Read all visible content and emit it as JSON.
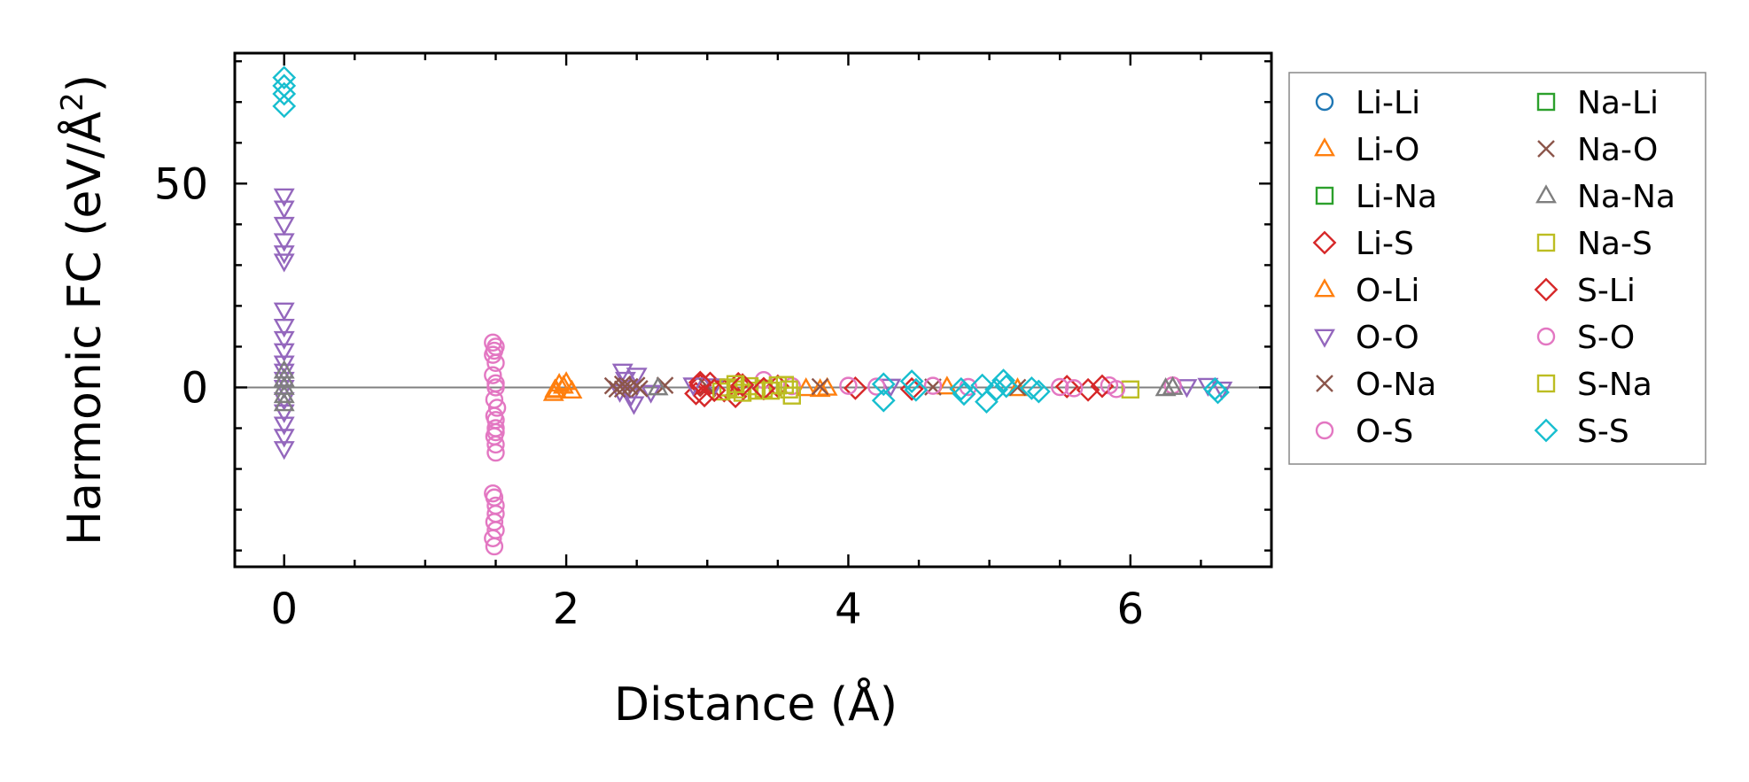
{
  "chart_data": {
    "type": "scatter",
    "xlabel": "Distance (Å)",
    "ylabel_main": "Harmonic FC (eV/Å",
    "ylabel_sup": "2",
    "ylabel_end": ")",
    "xlim": [
      -0.35,
      7.0
    ],
    "ylim": [
      -44,
      82
    ],
    "xticks": [
      0,
      2,
      4,
      6
    ],
    "yticks": [
      0,
      50
    ],
    "zero_line": true,
    "grid": false,
    "legend_position": "outside-right",
    "series": [
      {
        "name": "Li-Li",
        "marker": "circle",
        "color": "#1f77b4",
        "points": []
      },
      {
        "name": "Li-O",
        "marker": "triangle-up",
        "color": "#ff7f0e",
        "points": [
          [
            1.91,
            -1.5
          ],
          [
            1.92,
            -0.6
          ],
          [
            1.95,
            0.8
          ],
          [
            1.98,
            0.3
          ],
          [
            2.04,
            -0.9
          ],
          [
            3.8,
            -0.5
          ],
          [
            3.85,
            -0.2
          ],
          [
            5.2,
            -0.3
          ]
        ]
      },
      {
        "name": "Li-Na",
        "marker": "square",
        "color": "#2ca02c",
        "points": []
      },
      {
        "name": "Li-S",
        "marker": "diamond",
        "color": "#d62728",
        "points": [
          [
            2.92,
            -1.5
          ],
          [
            2.95,
            0.5
          ],
          [
            2.98,
            -2
          ],
          [
            3.02,
            1
          ],
          [
            3.12,
            -0.8
          ],
          [
            3.2,
            -2.2
          ],
          [
            3.22,
            0.9
          ],
          [
            3.5,
            0.3
          ],
          [
            4.05,
            -0.2
          ],
          [
            5.55,
            0.2
          ],
          [
            5.7,
            -0.6
          ]
        ]
      },
      {
        "name": "O-Li",
        "marker": "triangle-up",
        "color": "#ff7f0e",
        "points": [
          [
            1.93,
            -0.8
          ],
          [
            2.0,
            1.2
          ],
          [
            3.7,
            -0.3
          ],
          [
            4.7,
            0.1
          ]
        ]
      },
      {
        "name": "O-O",
        "marker": "triangle-down",
        "color": "#9467bd",
        "points": [
          [
            0,
            47
          ],
          [
            0,
            44
          ],
          [
            0,
            40
          ],
          [
            0,
            36
          ],
          [
            0,
            33
          ],
          [
            0,
            31
          ],
          [
            0,
            19
          ],
          [
            0,
            15
          ],
          [
            0,
            12
          ],
          [
            0,
            9
          ],
          [
            0,
            6
          ],
          [
            0,
            4
          ],
          [
            0,
            2
          ],
          [
            0,
            0
          ],
          [
            0,
            -3
          ],
          [
            0,
            -6
          ],
          [
            0,
            -9
          ],
          [
            0,
            -12
          ],
          [
            0,
            -15
          ],
          [
            2.4,
            4
          ],
          [
            2.42,
            2
          ],
          [
            2.44,
            0
          ],
          [
            2.46,
            -2
          ],
          [
            2.48,
            -4
          ],
          [
            2.5,
            3
          ],
          [
            2.38,
            -1
          ],
          [
            2.6,
            -1.2
          ],
          [
            2.9,
            0.6
          ],
          [
            3.05,
            0.4
          ],
          [
            4.3,
            0.3
          ],
          [
            6.4,
            0.2
          ],
          [
            6.55,
            0.5
          ],
          [
            6.65,
            -0.4
          ]
        ]
      },
      {
        "name": "O-Na",
        "marker": "x",
        "color": "#8c564b",
        "points": [
          [
            2.33,
            0.4
          ],
          [
            2.36,
            -0.4
          ],
          [
            2.4,
            0.8
          ],
          [
            2.45,
            0.2
          ],
          [
            2.52,
            -0.3
          ],
          [
            2.7,
            0.5
          ],
          [
            3.8,
            0.2
          ],
          [
            4.6,
            0.1
          ],
          [
            5.2,
            0
          ]
        ]
      },
      {
        "name": "O-S",
        "marker": "circle",
        "color": "#e377c2",
        "points": [
          [
            1.48,
            11
          ],
          [
            1.49,
            9
          ],
          [
            1.5,
            6
          ],
          [
            1.48,
            3
          ],
          [
            1.5,
            0
          ],
          [
            1.49,
            -3
          ],
          [
            1.51,
            -5
          ],
          [
            1.5,
            -8
          ],
          [
            1.5,
            -10
          ],
          [
            1.49,
            -12
          ],
          [
            1.5,
            -14
          ],
          [
            1.48,
            -26
          ],
          [
            1.5,
            -29
          ],
          [
            1.49,
            -33
          ],
          [
            1.5,
            -35
          ],
          [
            1.49,
            -39
          ],
          [
            3.4,
            1.8
          ],
          [
            3.6,
            0.3
          ],
          [
            4.0,
            0.4
          ],
          [
            4.2,
            0.2
          ],
          [
            4.6,
            0.4
          ],
          [
            4.85,
            0.1
          ],
          [
            5.5,
            0.1
          ],
          [
            5.85,
            0.5
          ],
          [
            6.3,
            0.5
          ]
        ]
      },
      {
        "name": "Na-Li",
        "marker": "square",
        "color": "#2ca02c",
        "points": []
      },
      {
        "name": "Na-O",
        "marker": "x",
        "color": "#8c564b",
        "points": [
          [
            2.4,
            -0.4
          ],
          [
            2.5,
            0.5
          ],
          [
            3.0,
            0.2
          ]
        ]
      },
      {
        "name": "Na-Na",
        "marker": "triangle-up",
        "color": "#7f7f7f",
        "points": [
          [
            0,
            4
          ],
          [
            0,
            2
          ],
          [
            0,
            0
          ],
          [
            0,
            -2
          ],
          [
            0,
            -4
          ],
          [
            2.65,
            -0.1
          ],
          [
            6.25,
            -0.3
          ],
          [
            6.3,
            0
          ]
        ]
      },
      {
        "name": "Na-S",
        "marker": "square",
        "color": "#bcbd22",
        "points": [
          [
            3.1,
            -1
          ],
          [
            3.15,
            0
          ],
          [
            3.2,
            -0.5
          ],
          [
            3.25,
            -1.3
          ],
          [
            3.3,
            0.3
          ],
          [
            3.35,
            -0.8
          ],
          [
            3.4,
            -0.3
          ],
          [
            3.5,
            0.5
          ],
          [
            3.58,
            -0.5
          ],
          [
            3.6,
            -2
          ],
          [
            6.0,
            -0.5
          ]
        ]
      },
      {
        "name": "S-Li",
        "marker": "diamond",
        "color": "#d62728",
        "points": [
          [
            2.95,
            1.2
          ],
          [
            3.05,
            -0.7
          ],
          [
            3.25,
            0.6
          ],
          [
            3.4,
            -0.3
          ],
          [
            4.45,
            -0.4
          ],
          [
            5.8,
            0.3
          ]
        ]
      },
      {
        "name": "S-O",
        "marker": "circle",
        "color": "#e377c2",
        "points": [
          [
            1.5,
            10
          ],
          [
            1.48,
            8
          ],
          [
            1.5,
            1
          ],
          [
            1.49,
            -7
          ],
          [
            1.5,
            -11
          ],
          [
            1.5,
            -16
          ],
          [
            1.49,
            -27
          ],
          [
            1.5,
            -31
          ],
          [
            1.48,
            -37
          ],
          [
            5.6,
            -0.2
          ],
          [
            5.9,
            -0.4
          ]
        ]
      },
      {
        "name": "S-Na",
        "marker": "square",
        "color": "#bcbd22",
        "points": [
          [
            3.2,
            0.8
          ],
          [
            3.45,
            -0.8
          ],
          [
            3.55,
            0.6
          ]
        ]
      },
      {
        "name": "S-S",
        "marker": "diamond",
        "color": "#17becf",
        "points": [
          [
            0,
            76
          ],
          [
            0,
            74
          ],
          [
            0,
            72
          ],
          [
            0,
            69
          ],
          [
            4.25,
            0.8
          ],
          [
            4.25,
            -3.2
          ],
          [
            4.45,
            1.5
          ],
          [
            4.48,
            -0.6
          ],
          [
            4.8,
            -0.4
          ],
          [
            4.82,
            -1.6
          ],
          [
            4.95,
            0.5
          ],
          [
            4.98,
            -3.5
          ],
          [
            5.05,
            -0.5
          ],
          [
            5.1,
            1.7
          ],
          [
            5.12,
            0.3
          ],
          [
            5.3,
            -0.2
          ],
          [
            5.35,
            -1
          ],
          [
            6.6,
            -0.4
          ],
          [
            6.62,
            -1.2
          ]
        ]
      }
    ]
  }
}
